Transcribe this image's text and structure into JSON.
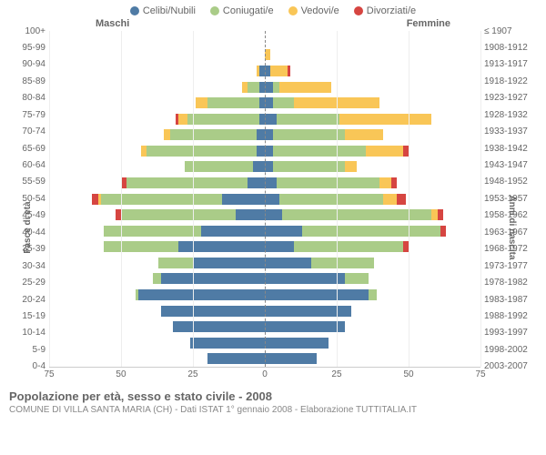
{
  "legend": {
    "items": [
      {
        "label": "Celibi/Nubili",
        "color": "#4f7ba5"
      },
      {
        "label": "Coniugati/e",
        "color": "#aacc88"
      },
      {
        "label": "Vedovi/e",
        "color": "#f9c657"
      },
      {
        "label": "Divorziati/e",
        "color": "#d64541"
      }
    ]
  },
  "side_labels": {
    "male": "Maschi",
    "female": "Femmine"
  },
  "axis_titles": {
    "left": "Fasce di età",
    "right": "Anni di nascita"
  },
  "x_axis": {
    "max": 75,
    "ticks": [
      75,
      50,
      25,
      0,
      25,
      50,
      75
    ]
  },
  "age_bands": [
    {
      "age": "100+",
      "birth": "≤ 1907",
      "m": {
        "c": 0,
        "g": 0,
        "v": 0,
        "d": 0
      },
      "f": {
        "c": 0,
        "g": 0,
        "v": 0,
        "d": 0
      }
    },
    {
      "age": "95-99",
      "birth": "1908-1912",
      "m": {
        "c": 0,
        "g": 0,
        "v": 0,
        "d": 0
      },
      "f": {
        "c": 0,
        "g": 0,
        "v": 2,
        "d": 0
      }
    },
    {
      "age": "90-94",
      "birth": "1913-1917",
      "m": {
        "c": 2,
        "g": 0,
        "v": 1,
        "d": 0
      },
      "f": {
        "c": 2,
        "g": 0,
        "v": 6,
        "d": 1
      }
    },
    {
      "age": "85-89",
      "birth": "1918-1922",
      "m": {
        "c": 2,
        "g": 4,
        "v": 2,
        "d": 0
      },
      "f": {
        "c": 3,
        "g": 2,
        "v": 18,
        "d": 0
      }
    },
    {
      "age": "80-84",
      "birth": "1923-1927",
      "m": {
        "c": 2,
        "g": 18,
        "v": 4,
        "d": 0
      },
      "f": {
        "c": 3,
        "g": 7,
        "v": 30,
        "d": 0
      }
    },
    {
      "age": "75-79",
      "birth": "1928-1932",
      "m": {
        "c": 2,
        "g": 25,
        "v": 3,
        "d": 1
      },
      "f": {
        "c": 4,
        "g": 22,
        "v": 32,
        "d": 0
      }
    },
    {
      "age": "70-74",
      "birth": "1933-1937",
      "m": {
        "c": 3,
        "g": 30,
        "v": 2,
        "d": 0
      },
      "f": {
        "c": 3,
        "g": 25,
        "v": 13,
        "d": 0
      }
    },
    {
      "age": "65-69",
      "birth": "1938-1942",
      "m": {
        "c": 3,
        "g": 38,
        "v": 2,
        "d": 0
      },
      "f": {
        "c": 3,
        "g": 32,
        "v": 13,
        "d": 2
      }
    },
    {
      "age": "60-64",
      "birth": "1943-1947",
      "m": {
        "c": 4,
        "g": 24,
        "v": 0,
        "d": 0
      },
      "f": {
        "c": 3,
        "g": 25,
        "v": 4,
        "d": 0
      }
    },
    {
      "age": "55-59",
      "birth": "1948-1952",
      "m": {
        "c": 6,
        "g": 42,
        "v": 0,
        "d": 2
      },
      "f": {
        "c": 4,
        "g": 36,
        "v": 4,
        "d": 2
      }
    },
    {
      "age": "50-54",
      "birth": "1953-1957",
      "m": {
        "c": 15,
        "g": 42,
        "v": 1,
        "d": 2
      },
      "f": {
        "c": 5,
        "g": 36,
        "v": 5,
        "d": 3
      }
    },
    {
      "age": "45-49",
      "birth": "1958-1962",
      "m": {
        "c": 10,
        "g": 40,
        "v": 0,
        "d": 2
      },
      "f": {
        "c": 6,
        "g": 52,
        "v": 2,
        "d": 2
      }
    },
    {
      "age": "40-44",
      "birth": "1963-1967",
      "m": {
        "c": 22,
        "g": 34,
        "v": 0,
        "d": 0
      },
      "f": {
        "c": 13,
        "g": 48,
        "v": 0,
        "d": 2
      }
    },
    {
      "age": "35-39",
      "birth": "1968-1972",
      "m": {
        "c": 30,
        "g": 26,
        "v": 0,
        "d": 0
      },
      "f": {
        "c": 10,
        "g": 38,
        "v": 0,
        "d": 2
      }
    },
    {
      "age": "30-34",
      "birth": "1973-1977",
      "m": {
        "c": 25,
        "g": 12,
        "v": 0,
        "d": 0
      },
      "f": {
        "c": 16,
        "g": 22,
        "v": 0,
        "d": 0
      }
    },
    {
      "age": "25-29",
      "birth": "1978-1982",
      "m": {
        "c": 36,
        "g": 3,
        "v": 0,
        "d": 0
      },
      "f": {
        "c": 28,
        "g": 8,
        "v": 0,
        "d": 0
      }
    },
    {
      "age": "20-24",
      "birth": "1983-1987",
      "m": {
        "c": 44,
        "g": 1,
        "v": 0,
        "d": 0
      },
      "f": {
        "c": 36,
        "g": 3,
        "v": 0,
        "d": 0
      }
    },
    {
      "age": "15-19",
      "birth": "1988-1992",
      "m": {
        "c": 36,
        "g": 0,
        "v": 0,
        "d": 0
      },
      "f": {
        "c": 30,
        "g": 0,
        "v": 0,
        "d": 0
      }
    },
    {
      "age": "10-14",
      "birth": "1993-1997",
      "m": {
        "c": 32,
        "g": 0,
        "v": 0,
        "d": 0
      },
      "f": {
        "c": 28,
        "g": 0,
        "v": 0,
        "d": 0
      }
    },
    {
      "age": "5-9",
      "birth": "1998-2002",
      "m": {
        "c": 26,
        "g": 0,
        "v": 0,
        "d": 0
      },
      "f": {
        "c": 22,
        "g": 0,
        "v": 0,
        "d": 0
      }
    },
    {
      "age": "0-4",
      "birth": "2003-2007",
      "m": {
        "c": 20,
        "g": 0,
        "v": 0,
        "d": 0
      },
      "f": {
        "c": 18,
        "g": 0,
        "v": 0,
        "d": 0
      }
    }
  ],
  "colors": {
    "celibi": "#4f7ba5",
    "coniugati": "#aacc88",
    "vedovi": "#f9c657",
    "divorziati": "#d64541",
    "grid": "#eeeeee",
    "center": "#888888",
    "background": "#ffffff"
  },
  "footer": {
    "title": "Popolazione per età, sesso e stato civile - 2008",
    "subtitle": "COMUNE DI VILLA SANTA MARIA (CH) - Dati ISTAT 1° gennaio 2008 - Elaborazione TUTTITALIA.IT"
  }
}
